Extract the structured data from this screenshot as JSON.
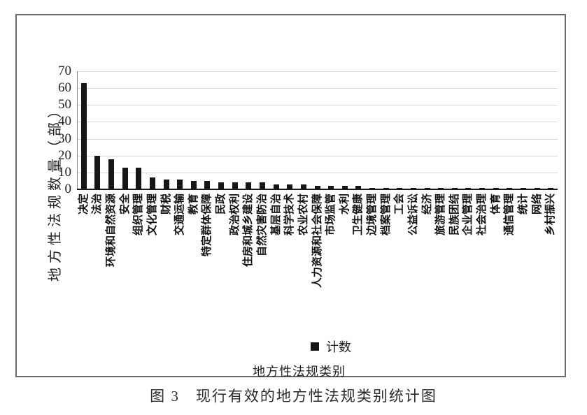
{
  "figure": {
    "caption": "图 3　现行有效的地方性法规类别统计图"
  },
  "chart_data": {
    "type": "bar",
    "title": "现行有效的地方性法规类别统计图",
    "categories": [
      "决定",
      "法治",
      "环境和自然资源",
      "安全",
      "组织管理",
      "文化管理",
      "财税",
      "交通运输",
      "教育",
      "特定群体保障",
      "民政",
      "政治权利",
      "住房和城乡建设",
      "自然灾害防治",
      "基层自治",
      "科学技术",
      "农业农村",
      "人力资源和社会保障",
      "市场监管",
      "水利",
      "卫生健康",
      "边境管理",
      "档案管理",
      "工会",
      "公益诉讼",
      "经济",
      "旅游管理",
      "民族团结",
      "企业管理",
      "社会治理",
      "体育",
      "通信管理",
      "统计",
      "网络",
      "乡村振兴"
    ],
    "values": [
      63,
      20,
      18,
      13,
      13,
      7,
      6,
      6,
      5,
      5,
      4,
      4,
      4,
      4,
      3,
      3,
      3,
      2,
      2,
      2,
      2,
      1,
      1,
      1,
      1,
      1,
      1,
      1,
      1,
      1,
      1,
      1,
      1,
      1,
      1
    ],
    "series_name": "计数",
    "xlabel": "地方性法规类别",
    "ylabel": "地方性法规数量（部）",
    "ylim": [
      0,
      70
    ],
    "yticks": [
      0,
      10,
      20,
      30,
      40,
      50,
      60,
      70
    ],
    "grid": true,
    "legend_position": "bottom-center",
    "colors": {
      "bar": "#161616",
      "gridline": "#d9d9d9",
      "axis": "#1a1a1a",
      "frame_border": "#6a6a6a",
      "text": "#1c1c1c"
    }
  }
}
